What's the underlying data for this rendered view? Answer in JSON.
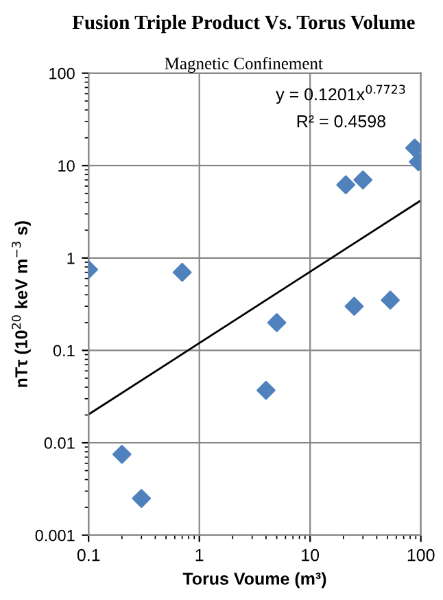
{
  "chart_data": {
    "type": "scatter",
    "title": "Fusion Triple Product Vs. Torus Volume",
    "subtitle": "Magnetic Confinement",
    "xlabel": "Torus Voume (m³)",
    "ylabel": "nTτ (10$^{20}$ keV m$^{−3}$ s)",
    "log": "xy",
    "xlim": [
      0.1,
      100
    ],
    "ylim": [
      0.001,
      100
    ],
    "xticks": [
      0.1,
      1,
      10,
      100
    ],
    "yticks": [
      0.001,
      0.01,
      0.1,
      1,
      10,
      100
    ],
    "grid": true,
    "series": [
      {
        "marker": "diamond",
        "color": "#4f81bd",
        "x": [
          0.1,
          0.7,
          0.2,
          0.3,
          5,
          4,
          21,
          30,
          25,
          53,
          95,
          88
        ],
        "values": [
          0.75,
          0.7,
          0.0075,
          0.0025,
          0.2,
          0.037,
          6.2,
          7,
          0.3,
          0.35,
          11,
          15.5
        ]
      },
      {
        "type": "line",
        "color": "#000000",
        "x": [
          0.1,
          100
        ],
        "values": [
          0.0203,
          4.2
        ]
      }
    ],
    "annotations": [
      "y = 0.1201x$^{0.7723}$",
      "R² = 0.4598"
    ]
  }
}
